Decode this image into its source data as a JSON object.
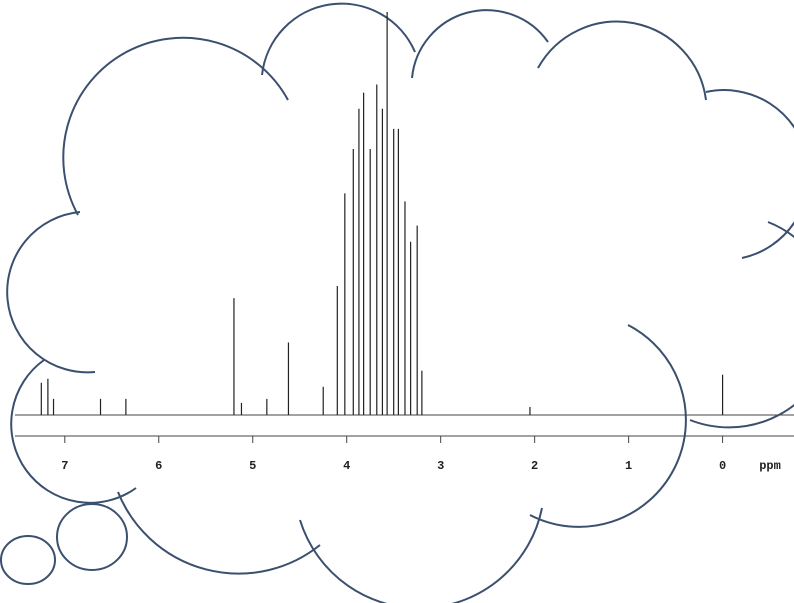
{
  "chart_data": {
    "type": "stem",
    "x_label": "ppm",
    "xlim": [
      7.53,
      -0.76
    ],
    "ylim": [
      0,
      100
    ],
    "xticks": [
      7,
      6,
      5,
      4,
      3,
      2,
      1,
      0
    ],
    "color": "#222222",
    "x": [
      7.25,
      7.18,
      7.12,
      6.62,
      6.35,
      5.2,
      5.12,
      4.85,
      4.62,
      4.25,
      4.1,
      4.02,
      3.93,
      3.87,
      3.82,
      3.75,
      3.68,
      3.62,
      3.57,
      3.5,
      3.45,
      3.38,
      3.32,
      3.25,
      3.2,
      2.05,
      0.0
    ],
    "values": [
      8,
      9,
      4,
      4,
      4,
      29,
      3,
      4,
      18,
      7,
      32,
      55,
      66,
      76,
      80,
      66,
      82,
      76,
      100,
      71,
      71,
      53,
      43,
      47,
      11,
      2,
      10
    ]
  }
}
